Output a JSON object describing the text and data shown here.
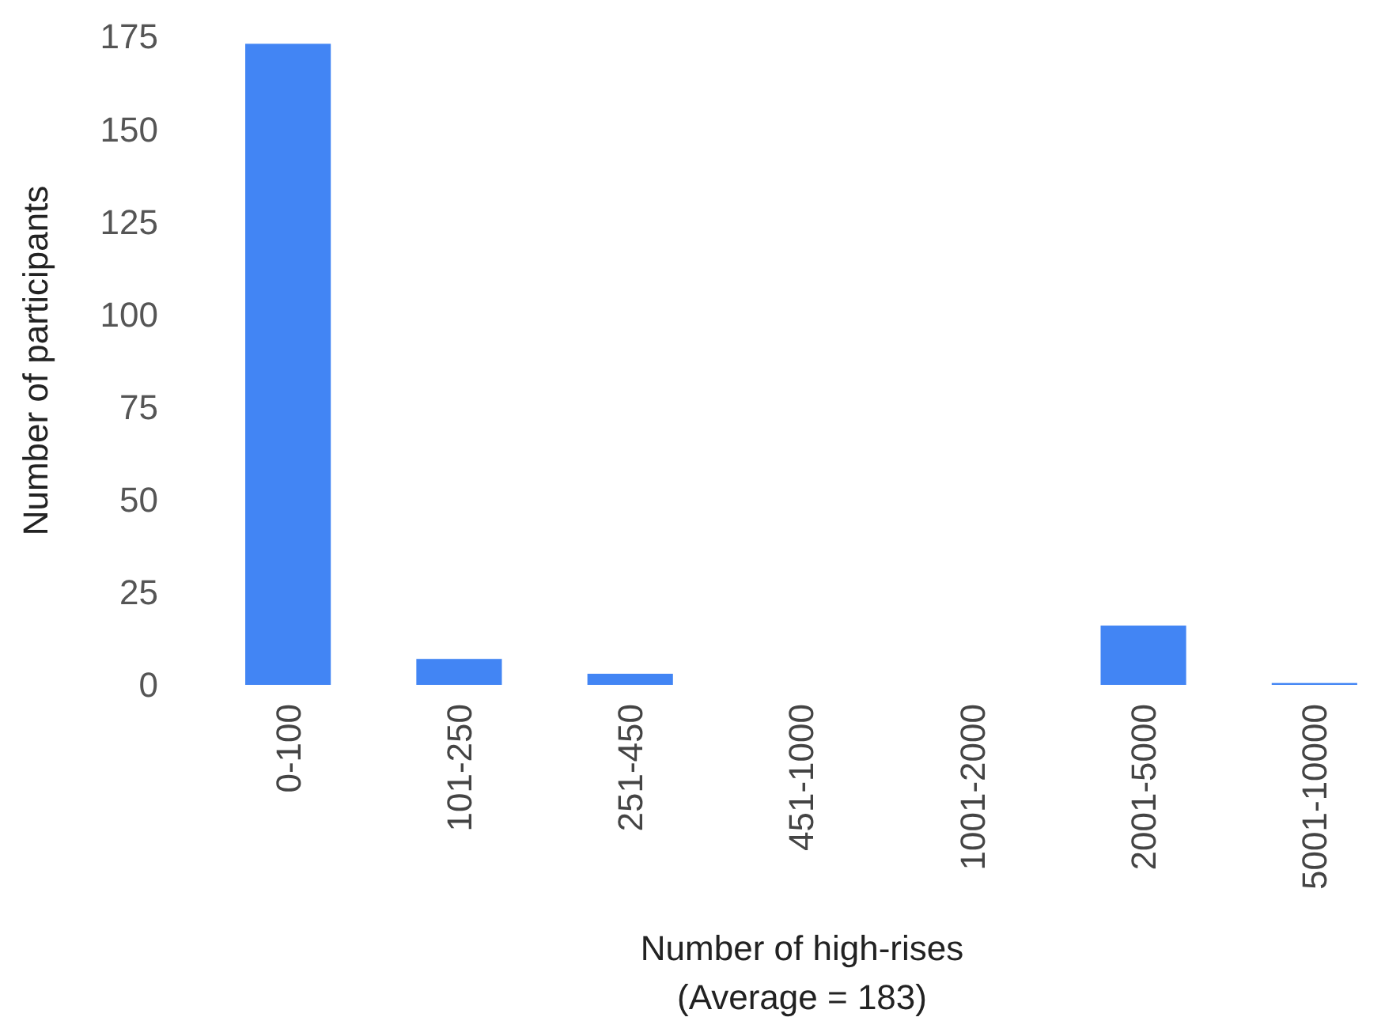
{
  "chart_data": {
    "type": "bar",
    "xlabel": "Number of high-rises\n(Average = 183)",
    "ylabel": "Number of participants",
    "categories": [
      "0-100",
      "101-250",
      "251-450",
      "451-1000",
      "1001-2000",
      "2001-5000",
      "5001-10000"
    ],
    "values": [
      173,
      7,
      3,
      0,
      0,
      16,
      0.5
    ],
    "color": "#4285f4",
    "ylim": [
      0,
      175
    ],
    "yticks": [
      0,
      25,
      50,
      75,
      100,
      125,
      150,
      175
    ],
    "grid": false
  }
}
